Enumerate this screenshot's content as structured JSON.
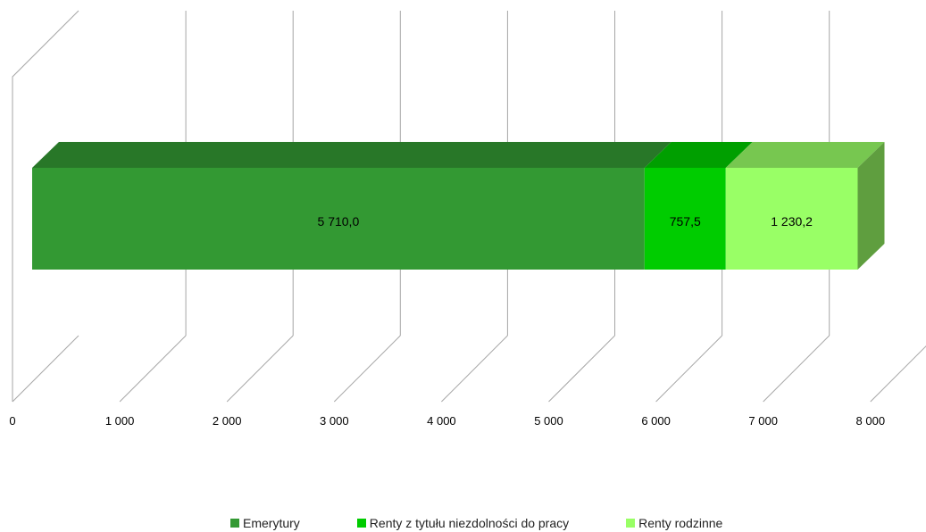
{
  "chart_data": {
    "type": "bar",
    "orientation": "horizontal",
    "stacked": true,
    "three_d": true,
    "categories": [
      ""
    ],
    "series": [
      {
        "name": "Emerytury",
        "values": [
          5710.0
        ],
        "label": "5 710,0",
        "color": "#339933"
      },
      {
        "name": "Renty z tytułu niezdolności do pracy",
        "values": [
          757.5
        ],
        "label": "757,5",
        "color": "#00cc00"
      },
      {
        "name": "Renty rodzinne",
        "values": [
          1230.2
        ],
        "label": "1 230,2",
        "color": "#99ff66"
      }
    ],
    "x_ticks": [
      "0",
      "1 000",
      "2 000",
      "3 000",
      "4 000",
      "5 000",
      "6 000",
      "7 000",
      "8 000"
    ],
    "xlim": [
      0,
      8000
    ],
    "grid": true,
    "legend_position": "bottom",
    "title": "",
    "xlabel": "",
    "ylabel": ""
  }
}
